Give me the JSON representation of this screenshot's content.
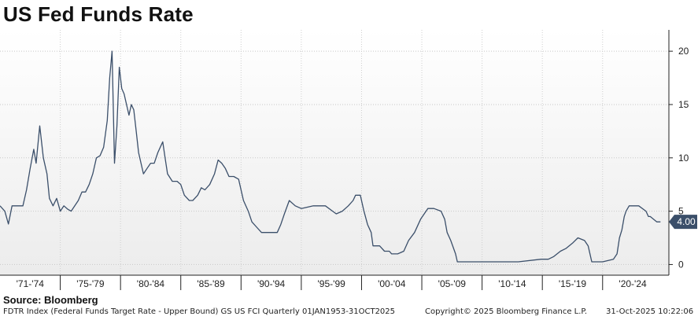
{
  "title": "US Fed Funds Rate",
  "source": "Source: Bloomberg",
  "footer": {
    "left": "FDTR Index (Federal Funds Target Rate - Upper Bound) GS US FCI Quarterly 01JAN1953-31OCT2025",
    "middle": "Copyright© 2025 Bloomberg Finance L.P.",
    "right": "31-Oct-2025 10:22:06"
  },
  "colors": {
    "line": "#3b4f6a",
    "badge": "#3b4f6a",
    "grid": "#cfcfcf",
    "plot_bg_top": "#ffffff",
    "plot_bg_bottom": "#eeeeee"
  },
  "chart_data": {
    "type": "line",
    "title": "US Fed Funds Rate",
    "ylim": [
      -1,
      22
    ],
    "yticks": [
      0,
      5,
      10,
      15,
      20
    ],
    "y_axis_side": "right",
    "grid": "dotted",
    "xlim": [
      1971.0,
      2026.5
    ],
    "x_categories": [
      "'71-'74",
      "'75-'79",
      "'80-'84",
      "'85-'89",
      "'90-'94",
      "'95-'99",
      "'00-'04",
      "'05-'09",
      "'10-'14",
      "'15-'19",
      "'20-'24"
    ],
    "last_value_label": "4.00",
    "series": [
      {
        "x": [
          1971.0,
          1971.4,
          1971.7,
          1972.0,
          1972.5,
          1972.9,
          1973.2,
          1973.5,
          1973.8,
          1974.0,
          1974.3,
          1974.6,
          1974.9,
          1975.1,
          1975.4,
          1975.7,
          1976.0,
          1976.3,
          1976.6,
          1976.9,
          1977.2,
          1977.5,
          1977.8,
          1978.1,
          1978.4,
          1978.7,
          1979.0,
          1979.3,
          1979.6,
          1979.9,
          1980.1,
          1980.3,
          1980.5,
          1980.7,
          1980.9,
          1981.1,
          1981.3,
          1981.5,
          1981.7,
          1981.9,
          1982.1,
          1982.3,
          1982.5,
          1982.7,
          1982.9,
          1983.2,
          1983.5,
          1983.8,
          1984.1,
          1984.3,
          1984.5,
          1984.7,
          1984.9,
          1985.3,
          1985.7,
          1986.0,
          1986.3,
          1986.7,
          1987.0,
          1987.4,
          1987.7,
          1988.0,
          1988.4,
          1988.8,
          1989.1,
          1989.4,
          1989.7,
          1990.0,
          1990.4,
          1990.8,
          1991.2,
          1991.6,
          1991.9,
          1992.3,
          1992.7,
          1993.3,
          1994.0,
          1994.3,
          1994.6,
          1995.0,
          1995.5,
          1996.0,
          1997.0,
          1998.0,
          1998.6,
          1998.9,
          1999.4,
          1999.9,
          2000.3,
          2000.5,
          2000.9,
          2001.2,
          2001.5,
          2001.8,
          2001.95,
          2002.5,
          2002.9,
          2003.3,
          2003.5,
          2004.0,
          2004.5,
          2004.9,
          2005.4,
          2005.9,
          2006.5,
          2007.0,
          2007.6,
          2007.9,
          2008.1,
          2008.4,
          2008.8,
          2008.95,
          2010.0,
          2012.0,
          2014.0,
          2015.9,
          2016.5,
          2016.95,
          2017.5,
          2017.95,
          2018.5,
          2018.95,
          2019.5,
          2019.8,
          2020.1,
          2020.3,
          2021.0,
          2021.9,
          2022.2,
          2022.4,
          2022.6,
          2022.8,
          2022.95,
          2023.2,
          2023.6,
          2024.0,
          2024.6,
          2024.8,
          2024.95,
          2025.5,
          2025.8
        ],
        "y": [
          5.5,
          5.0,
          3.8,
          5.5,
          5.5,
          5.5,
          7.0,
          9.0,
          10.8,
          9.5,
          13.0,
          10.0,
          8.5,
          6.2,
          5.5,
          6.2,
          5.0,
          5.5,
          5.2,
          5.0,
          5.5,
          6.0,
          6.8,
          6.8,
          7.5,
          8.5,
          10.0,
          10.2,
          11.0,
          13.5,
          17.5,
          20.0,
          9.5,
          13.0,
          18.5,
          16.5,
          16.0,
          15.0,
          14.0,
          15.0,
          14.5,
          12.5,
          10.5,
          9.5,
          8.5,
          9.0,
          9.5,
          9.5,
          10.5,
          11.0,
          11.5,
          10.0,
          8.5,
          7.8,
          7.8,
          7.5,
          6.5,
          6.0,
          6.0,
          6.5,
          7.2,
          7.0,
          7.5,
          8.5,
          9.8,
          9.5,
          9.0,
          8.25,
          8.25,
          8.0,
          6.0,
          5.0,
          4.0,
          3.5,
          3.0,
          3.0,
          3.0,
          3.75,
          4.75,
          6.0,
          5.5,
          5.25,
          5.5,
          5.5,
          5.0,
          4.75,
          5.0,
          5.5,
          6.0,
          6.5,
          6.5,
          5.0,
          3.75,
          3.0,
          1.75,
          1.75,
          1.25,
          1.25,
          1.0,
          1.0,
          1.25,
          2.25,
          3.0,
          4.25,
          5.25,
          5.25,
          5.0,
          4.25,
          3.0,
          2.25,
          1.0,
          0.25,
          0.25,
          0.25,
          0.25,
          0.5,
          0.5,
          0.75,
          1.25,
          1.5,
          2.0,
          2.5,
          2.25,
          1.75,
          0.25,
          0.25,
          0.25,
          0.5,
          1.0,
          2.5,
          3.25,
          4.5,
          5.0,
          5.5,
          5.5,
          5.5,
          5.0,
          4.5,
          4.5,
          4.0,
          4.0
        ]
      }
    ]
  }
}
